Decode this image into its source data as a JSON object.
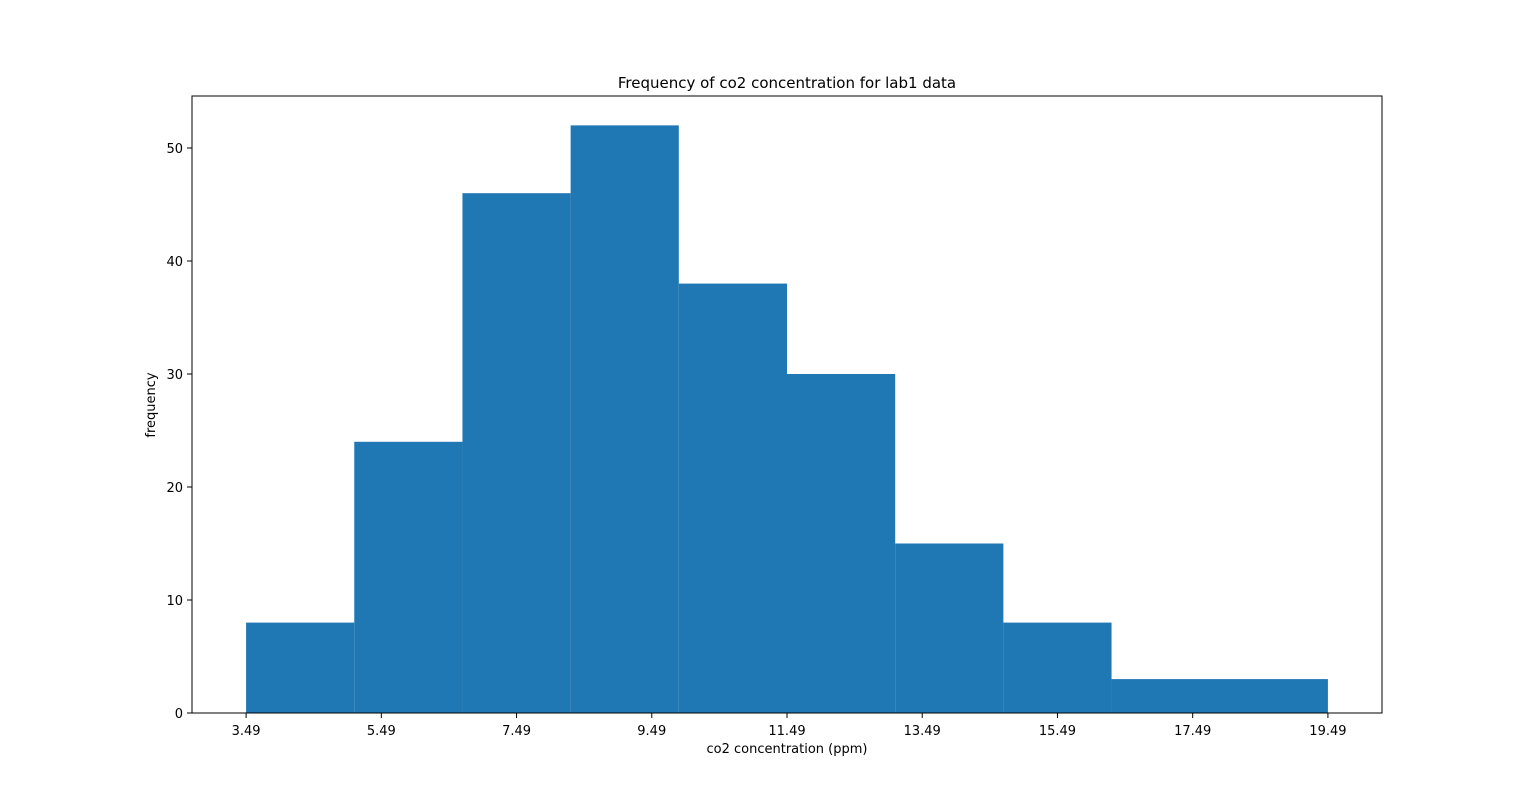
{
  "chart_data": {
    "type": "bar",
    "title": "Frequency of co2 concentration for lab1 data",
    "xlabel": "co2 concentration (ppm)",
    "ylabel": "frequency",
    "bin_edges": [
      3.49,
      5.09,
      6.69,
      8.29,
      9.89,
      11.49,
      13.09,
      14.69,
      16.29,
      19.49
    ],
    "values": [
      8,
      24,
      46,
      52,
      38,
      30,
      15,
      8,
      3
    ],
    "xticks": [
      "3.49",
      "5.49",
      "7.49",
      "9.49",
      "11.49",
      "13.49",
      "15.49",
      "17.49",
      "19.49"
    ],
    "yticks": [
      "0",
      "10",
      "20",
      "30",
      "40",
      "50"
    ],
    "xlim": [
      2.69,
      20.29
    ],
    "ylim": [
      0,
      54.6
    ],
    "bar_color": "#1f77b4",
    "grid": false,
    "legend": false
  }
}
